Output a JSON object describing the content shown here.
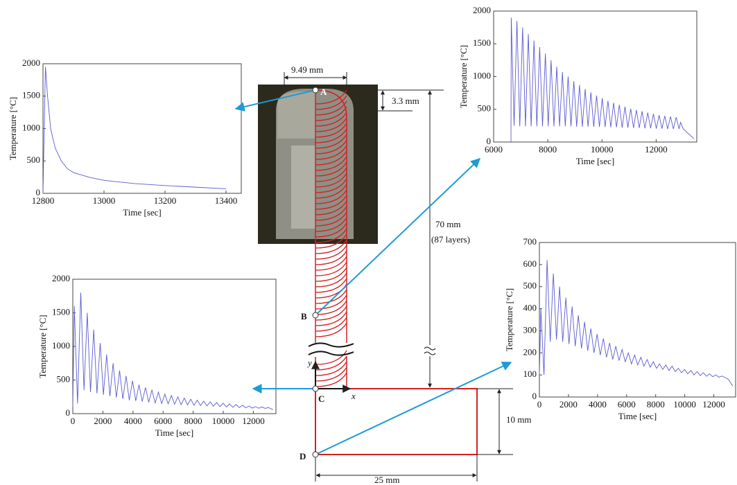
{
  "chart_data": [
    {
      "type": "line",
      "xlabel": "Time [sec]",
      "ylabel": "Temperature [°C]",
      "color": "#5a5ad2",
      "x": [
        12800,
        12808,
        12815,
        12825,
        12840,
        12860,
        12880,
        12900,
        12950,
        13000,
        13100,
        13200,
        13300,
        13400
      ],
      "values": [
        0,
        1950,
        1500,
        1000,
        700,
        500,
        380,
        320,
        250,
        200,
        150,
        120,
        95,
        70
      ],
      "xlim": [
        12800,
        13450
      ],
      "ylim": [
        0,
        2000
      ],
      "xticks": [
        12800,
        13000,
        13200,
        13400
      ],
      "yticks": [
        0,
        500,
        1000,
        1500,
        2000
      ]
    },
    {
      "type": "line",
      "xlabel": "Time [sec]",
      "ylabel": "Temperature [°C]",
      "color": "#5a5ad2",
      "x": [
        6640,
        6650,
        6755,
        6860,
        6965,
        7070,
        7175,
        7280,
        7385,
        7490,
        7595,
        7700,
        7805,
        7910,
        8015,
        8120,
        8225,
        8330,
        8435,
        8540,
        8645,
        8750,
        8855,
        8960,
        9065,
        9170,
        9275,
        9380,
        9485,
        9590,
        9695,
        9800,
        9905,
        10010,
        10115,
        10220,
        10325,
        10430,
        10535,
        10640,
        10745,
        10850,
        10955,
        11060,
        11165,
        11270,
        11375,
        11480,
        11585,
        11690,
        11795,
        11900,
        12005,
        12110,
        12215,
        12320,
        12425,
        12530,
        12635,
        12740,
        12845,
        12900,
        13000,
        13400
      ],
      "values": [
        0,
        1900,
        250,
        1850,
        240,
        1750,
        240,
        1650,
        240,
        1550,
        240,
        1450,
        240,
        1350,
        240,
        1250,
        240,
        1150,
        240,
        1070,
        240,
        1000,
        240,
        930,
        235,
        870,
        235,
        810,
        235,
        760,
        230,
        710,
        230,
        670,
        230,
        630,
        225,
        600,
        225,
        570,
        220,
        540,
        220,
        510,
        215,
        490,
        215,
        470,
        210,
        450,
        210,
        430,
        205,
        410,
        205,
        400,
        200,
        390,
        200,
        380,
        200,
        300,
        200,
        50
      ],
      "xlim": [
        6000,
        13500
      ],
      "ylim": [
        0,
        2000
      ],
      "xticks": [
        6000,
        8000,
        10000,
        12000
      ],
      "yticks": [
        0,
        500,
        1000,
        1500,
        2000
      ]
    },
    {
      "type": "line",
      "xlabel": "Time [sec]",
      "ylabel": "Temperature [°C]",
      "color": "#5a5ad2",
      "x": [
        0,
        100,
        315,
        530,
        745,
        960,
        1175,
        1390,
        1605,
        1820,
        2035,
        2250,
        2465,
        2680,
        2895,
        3110,
        3325,
        3540,
        3755,
        3970,
        4185,
        4400,
        4615,
        4830,
        5045,
        5260,
        5475,
        5690,
        5905,
        6120,
        6335,
        6550,
        6765,
        6980,
        7195,
        7410,
        7625,
        7840,
        8055,
        8270,
        8485,
        8700,
        8915,
        9130,
        9345,
        9560,
        9775,
        9990,
        10205,
        10420,
        10635,
        10850,
        11065,
        11280,
        11495,
        11710,
        11925,
        12140,
        12355,
        12570,
        12785,
        13000,
        13300
      ],
      "values": [
        100,
        1600,
        150,
        1800,
        350,
        1500,
        320,
        1250,
        300,
        1050,
        280,
        880,
        260,
        750,
        240,
        640,
        220,
        560,
        200,
        490,
        190,
        430,
        180,
        390,
        170,
        350,
        160,
        320,
        150,
        290,
        145,
        270,
        140,
        250,
        135,
        230,
        130,
        215,
        125,
        200,
        120,
        185,
        115,
        175,
        110,
        165,
        105,
        155,
        100,
        145,
        95,
        135,
        90,
        125,
        85,
        115,
        82,
        105,
        80,
        100,
        78,
        90,
        60
      ],
      "xlim": [
        0,
        13500
      ],
      "ylim": [
        0,
        2000
      ],
      "xticks": [
        0,
        2000,
        4000,
        6000,
        8000,
        10000,
        12000
      ],
      "yticks": [
        0,
        500,
        1000,
        1500,
        2000
      ]
    },
    {
      "type": "line",
      "xlabel": "Time [sec]",
      "ylabel": "Temperature [°C]",
      "color": "#5a5ad2",
      "x": [
        0,
        100,
        315,
        530,
        745,
        960,
        1175,
        1390,
        1605,
        1820,
        2035,
        2250,
        2465,
        2680,
        2895,
        3110,
        3325,
        3540,
        3755,
        3970,
        4185,
        4400,
        4615,
        4830,
        5045,
        5260,
        5475,
        5690,
        5905,
        6120,
        6335,
        6550,
        6765,
        6980,
        7195,
        7410,
        7625,
        7840,
        8055,
        8270,
        8485,
        8700,
        8915,
        9130,
        9345,
        9560,
        9775,
        9990,
        10205,
        10420,
        10635,
        10850,
        11065,
        11280,
        11495,
        11710,
        11925,
        12140,
        12355,
        12570,
        12785,
        13000,
        13300
      ],
      "values": [
        100,
        400,
        100,
        620,
        250,
        560,
        260,
        500,
        250,
        450,
        240,
        410,
        230,
        370,
        220,
        340,
        210,
        310,
        200,
        285,
        190,
        265,
        180,
        245,
        170,
        230,
        165,
        215,
        160,
        200,
        150,
        190,
        145,
        180,
        140,
        170,
        135,
        160,
        130,
        150,
        125,
        145,
        120,
        140,
        115,
        130,
        110,
        125,
        105,
        120,
        100,
        115,
        97,
        110,
        94,
        105,
        92,
        100,
        90,
        95,
        88,
        80,
        50
      ],
      "xlim": [
        0,
        13500
      ],
      "ylim": [
        0,
        700
      ],
      "xticks": [
        0,
        2000,
        4000,
        6000,
        8000,
        10000,
        12000
      ],
      "yticks": [
        0,
        100,
        200,
        300,
        400,
        500,
        600,
        700
      ]
    }
  ],
  "diagram": {
    "width_label": "9.49 mm",
    "cap_label": "3.3 mm",
    "height_label": "70 mm",
    "layers_label": "(87 layers)",
    "base_height_label": "10 mm",
    "base_width_label": "25 mm",
    "points": [
      "A",
      "B",
      "C",
      "D"
    ],
    "x_axis": "x",
    "y_axis": "y"
  }
}
